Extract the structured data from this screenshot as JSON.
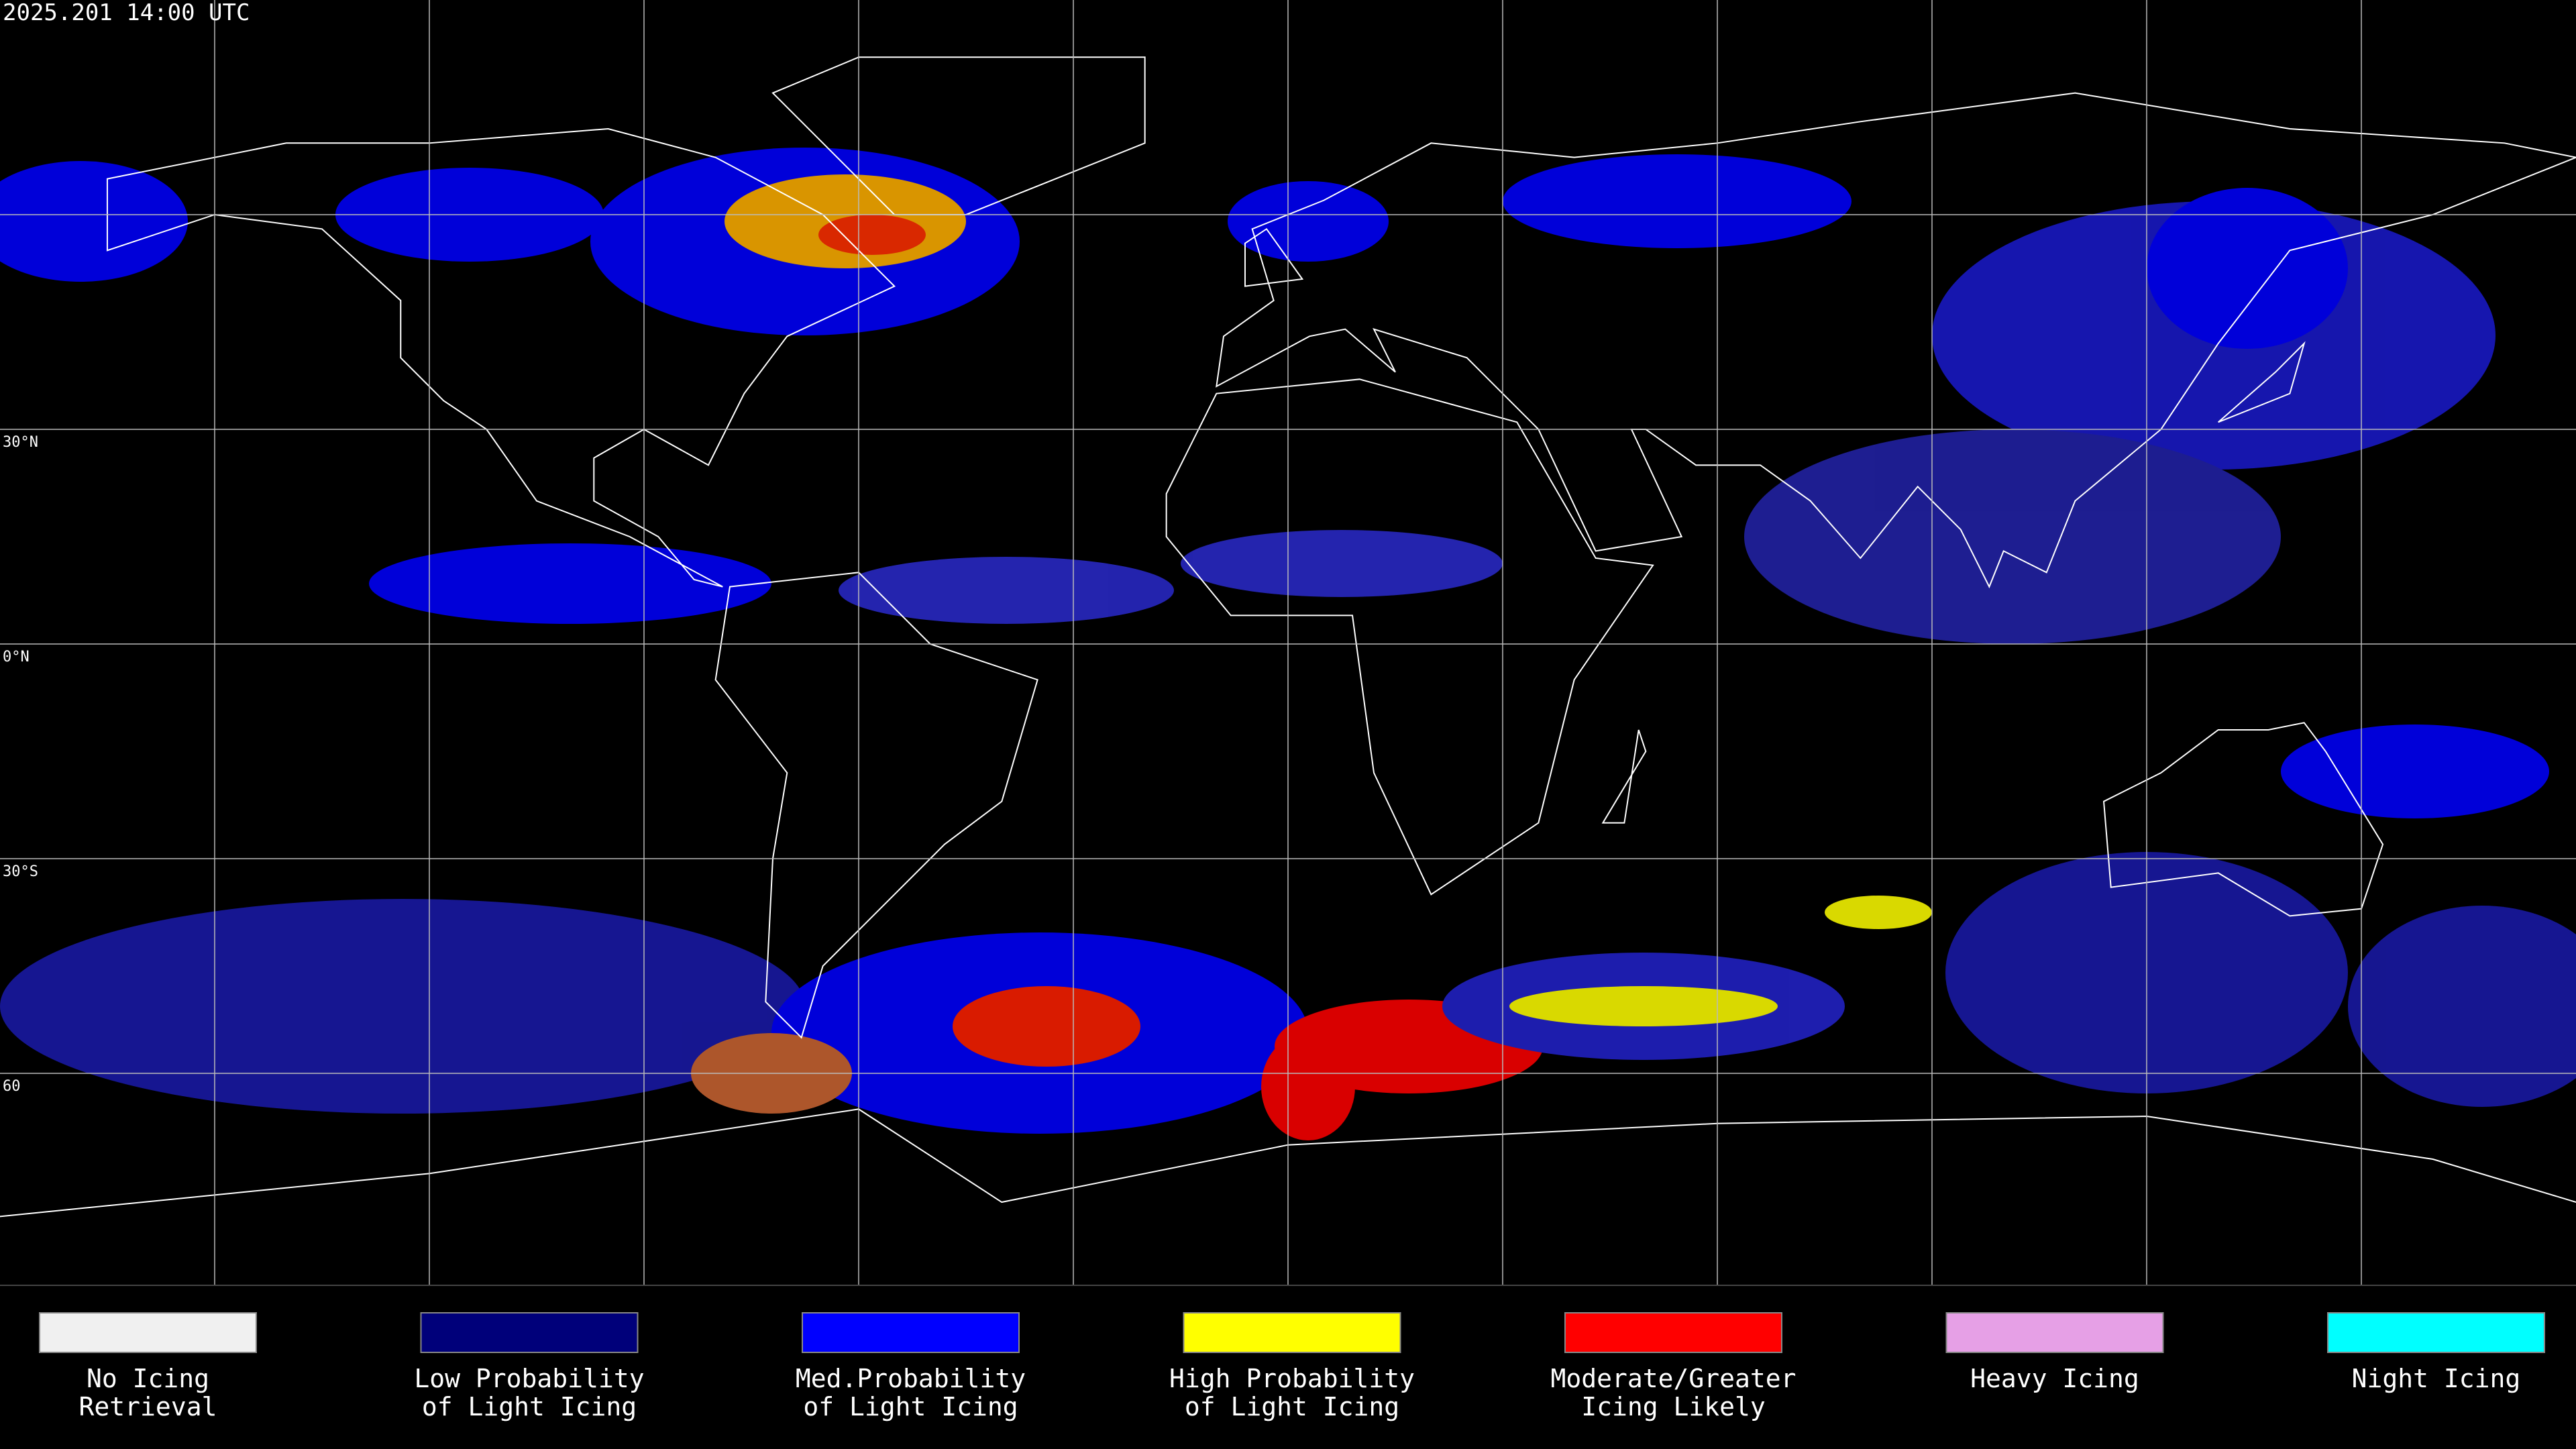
{
  "header": {
    "timestamp": "2025.201 14:00 UTC"
  },
  "map": {
    "latitude_labels": [
      "30°N",
      "0°N",
      "30°S",
      "60"
    ]
  },
  "legend": {
    "items": [
      {
        "label_lines": [
          "No Icing",
          "Retrieval"
        ],
        "color": "#f0f0f0"
      },
      {
        "label_lines": [
          "Low Probability",
          "of Light Icing"
        ],
        "color": "#00007a"
      },
      {
        "label_lines": [
          "Med.Probability",
          "of Light Icing"
        ],
        "color": "#0000ff"
      },
      {
        "label_lines": [
          "High Probability",
          "of Light Icing"
        ],
        "color": "#ffff00"
      },
      {
        "label_lines": [
          "Moderate/Greater",
          "Icing Likely"
        ],
        "color": "#ff0000"
      },
      {
        "label_lines": [
          "Heavy Icing"
        ],
        "color": "#e6a0e6"
      },
      {
        "label_lines": [
          "Night Icing"
        ],
        "color": "#00ffff"
      }
    ]
  }
}
